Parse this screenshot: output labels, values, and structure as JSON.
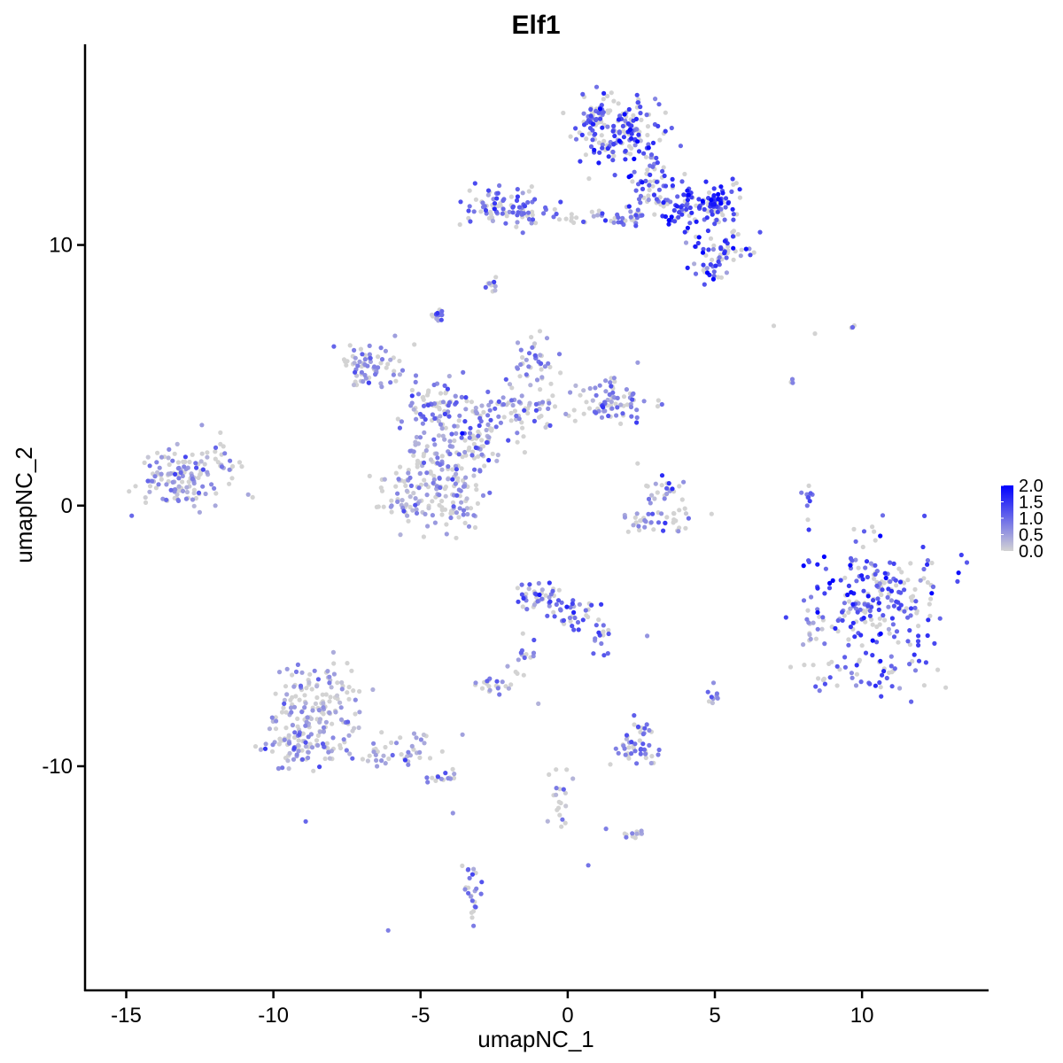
{
  "chart_data": {
    "type": "scatter",
    "title": "Elf1",
    "xlabel": "umapNC_1",
    "ylabel": "umapNC_2",
    "xlim": [
      -16.4,
      14.3
    ],
    "ylim": [
      -18.6,
      17.7
    ],
    "x_ticks": [
      -15,
      -10,
      -5,
      0,
      5,
      10
    ],
    "x_tick_labels": [
      "-15",
      "-10",
      "-5",
      "0",
      "5",
      "10"
    ],
    "y_ticks": [
      -10,
      0,
      10
    ],
    "y_tick_labels": [
      "-10",
      "0",
      "10"
    ],
    "grid": false,
    "legend": {
      "position": "right",
      "type": "colorbar",
      "min": 0.0,
      "max": 2.0,
      "ticks": [
        0.0,
        0.5,
        1.0,
        1.5,
        2.0
      ],
      "tick_labels": [
        "0.0",
        "0.5",
        "1.0",
        "1.5",
        "2.0"
      ]
    },
    "color_low": "#d3d3d3",
    "color_high": "#0000ff",
    "clusters": [
      {
        "x": 1.0,
        "y": 14.5,
        "sx": 0.45,
        "sy": 0.6,
        "n": 90,
        "expr": 1.2
      },
      {
        "x": 2.2,
        "y": 14.3,
        "sx": 0.55,
        "sy": 0.65,
        "n": 100,
        "expr": 1.2
      },
      {
        "x": 2.8,
        "y": 12.8,
        "sx": 0.4,
        "sy": 0.5,
        "n": 40,
        "expr": 1.0
      },
      {
        "x": 4.3,
        "y": 11.5,
        "sx": 0.8,
        "sy": 0.45,
        "n": 120,
        "expr": 1.35
      },
      {
        "x": 5.2,
        "y": 11.7,
        "sx": 0.35,
        "sy": 0.3,
        "n": 30,
        "expr": 1.7
      },
      {
        "x": 5.4,
        "y": 9.8,
        "sx": 0.45,
        "sy": 0.35,
        "n": 40,
        "expr": 1.2
      },
      {
        "x": 4.8,
        "y": 9.0,
        "sx": 0.35,
        "sy": 0.3,
        "n": 25,
        "expr": 1.2
      },
      {
        "x": 2.0,
        "y": 11.2,
        "sx": 0.6,
        "sy": 0.3,
        "n": 30,
        "expr": 1.0
      },
      {
        "x": -2.0,
        "y": 11.4,
        "sx": 0.7,
        "sy": 0.35,
        "n": 90,
        "expr": 1.0
      },
      {
        "x": 0.0,
        "y": 11.1,
        "sx": 0.9,
        "sy": 0.15,
        "n": 20,
        "expr": 0.8
      },
      {
        "x": -2.6,
        "y": 8.5,
        "sx": 0.12,
        "sy": 0.15,
        "n": 10,
        "expr": 0.8
      },
      {
        "x": -4.4,
        "y": 7.3,
        "sx": 0.12,
        "sy": 0.2,
        "n": 15,
        "expr": 1.0
      },
      {
        "x": -6.7,
        "y": 5.4,
        "sx": 0.6,
        "sy": 0.45,
        "n": 70,
        "expr": 0.6
      },
      {
        "x": -4.5,
        "y": 3.8,
        "sx": 0.6,
        "sy": 0.5,
        "n": 80,
        "expr": 0.7
      },
      {
        "x": -3.2,
        "y": 2.8,
        "sx": 0.6,
        "sy": 0.6,
        "n": 80,
        "expr": 0.7
      },
      {
        "x": -1.5,
        "y": 3.6,
        "sx": 0.7,
        "sy": 0.5,
        "n": 60,
        "expr": 0.6
      },
      {
        "x": -1.2,
        "y": 5.5,
        "sx": 0.4,
        "sy": 0.5,
        "n": 40,
        "expr": 0.7
      },
      {
        "x": 1.4,
        "y": 4.0,
        "sx": 0.7,
        "sy": 0.45,
        "n": 80,
        "expr": 0.8
      },
      {
        "x": -5.5,
        "y": 0.5,
        "sx": 0.55,
        "sy": 0.55,
        "n": 70,
        "expr": 0.4
      },
      {
        "x": -3.8,
        "y": 0.6,
        "sx": 0.55,
        "sy": 0.9,
        "n": 90,
        "expr": 0.5
      },
      {
        "x": -4.6,
        "y": 1.8,
        "sx": 0.5,
        "sy": 0.5,
        "n": 40,
        "expr": 0.5
      },
      {
        "x": -13.0,
        "y": 1.0,
        "sx": 0.8,
        "sy": 0.5,
        "n": 130,
        "expr": 0.6
      },
      {
        "x": -11.8,
        "y": 1.9,
        "sx": 0.4,
        "sy": 0.4,
        "n": 20,
        "expr": 0.5
      },
      {
        "x": 3.2,
        "y": 0.5,
        "sx": 0.35,
        "sy": 0.35,
        "n": 25,
        "expr": 0.7
      },
      {
        "x": 3.0,
        "y": -0.6,
        "sx": 0.8,
        "sy": 0.25,
        "n": 40,
        "expr": 0.7
      },
      {
        "x": 8.1,
        "y": 0.4,
        "sx": 0.12,
        "sy": 0.4,
        "n": 10,
        "expr": 0.8
      },
      {
        "x": 10.5,
        "y": -3.8,
        "sx": 1.1,
        "sy": 1.25,
        "n": 240,
        "expr": 1.2
      },
      {
        "x": 10.0,
        "y": -6.5,
        "sx": 1.0,
        "sy": 0.4,
        "n": 40,
        "expr": 1.2
      },
      {
        "x": 8.2,
        "y": -4.5,
        "sx": 0.2,
        "sy": 0.4,
        "n": 15,
        "expr": 0.6
      },
      {
        "x": -1.0,
        "y": -3.5,
        "sx": 0.4,
        "sy": 0.3,
        "n": 40,
        "expr": 1.0
      },
      {
        "x": 0.2,
        "y": -4.0,
        "sx": 0.35,
        "sy": 0.35,
        "n": 35,
        "expr": 1.1
      },
      {
        "x": 1.1,
        "y": -5.0,
        "sx": 0.2,
        "sy": 0.35,
        "n": 15,
        "expr": 1.0
      },
      {
        "x": -1.5,
        "y": -5.9,
        "sx": 0.2,
        "sy": 0.4,
        "n": 15,
        "expr": 0.7
      },
      {
        "x": -2.5,
        "y": -6.9,
        "sx": 0.25,
        "sy": 0.15,
        "n": 20,
        "expr": 1.0
      },
      {
        "x": -8.5,
        "y": -7.8,
        "sx": 0.7,
        "sy": 0.9,
        "n": 160,
        "expr": 0.45
      },
      {
        "x": -9.2,
        "y": -9.2,
        "sx": 0.6,
        "sy": 0.5,
        "n": 70,
        "expr": 0.5
      },
      {
        "x": -6.0,
        "y": -9.4,
        "sx": 1.1,
        "sy": 0.35,
        "n": 50,
        "expr": 0.5
      },
      {
        "x": -4.2,
        "y": -10.4,
        "sx": 0.3,
        "sy": 0.15,
        "n": 15,
        "expr": 0.6
      },
      {
        "x": 2.4,
        "y": -9.4,
        "sx": 0.4,
        "sy": 0.3,
        "n": 40,
        "expr": 0.9
      },
      {
        "x": 2.5,
        "y": -8.6,
        "sx": 0.15,
        "sy": 0.2,
        "n": 10,
        "expr": 0.8
      },
      {
        "x": 5.0,
        "y": -7.3,
        "sx": 0.1,
        "sy": 0.2,
        "n": 10,
        "expr": 0.8
      },
      {
        "x": -3.3,
        "y": -14.8,
        "sx": 0.15,
        "sy": 0.5,
        "n": 25,
        "expr": 0.9
      },
      {
        "x": -0.3,
        "y": -11.2,
        "sx": 0.2,
        "sy": 0.6,
        "n": 20,
        "expr": 0.5
      },
      {
        "x": 2.3,
        "y": -12.6,
        "sx": 0.2,
        "sy": 0.15,
        "n": 12,
        "expr": 0.5
      },
      {
        "x": 9.7,
        "y": 6.8,
        "sx": 0.1,
        "sy": 0.1,
        "n": 3,
        "expr": 0.5
      },
      {
        "x": 7.6,
        "y": 4.8,
        "sx": 0.05,
        "sy": 0.1,
        "n": 3,
        "expr": 0.5
      }
    ],
    "singletons": [
      {
        "x": -6.1,
        "y": -16.3,
        "expr": 0.8
      },
      {
        "x": 0.7,
        "y": -13.8,
        "expr": 0.9
      },
      {
        "x": -3.9,
        "y": -11.8,
        "expr": 0.6
      },
      {
        "x": 7.0,
        "y": 6.9,
        "expr": 0.0
      },
      {
        "x": 8.4,
        "y": 6.6,
        "expr": 0.0
      },
      {
        "x": 2.7,
        "y": -5.0,
        "expr": 0.6
      },
      {
        "x": -1.0,
        "y": -7.6,
        "expr": 0.3
      },
      {
        "x": 1.3,
        "y": -12.4,
        "expr": 0.8
      }
    ]
  }
}
